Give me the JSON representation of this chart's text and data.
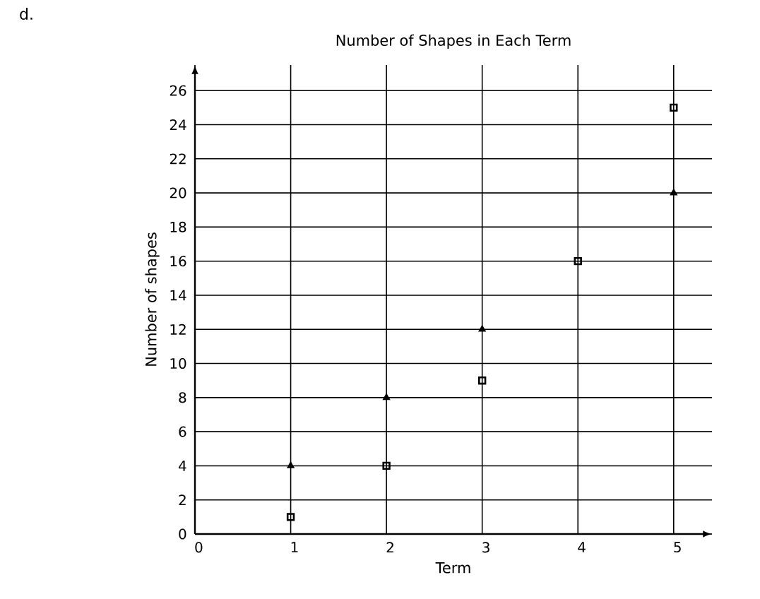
{
  "chart_data": {
    "type": "scatter",
    "title": "Number of Shapes in Each Term",
    "xlabel": "Term",
    "ylabel": "Number of shapes",
    "annotations": [
      "d."
    ],
    "x": [
      1,
      2,
      3,
      4,
      5
    ],
    "series": [
      {
        "color": "#000000",
        "marker": "triangle",
        "values": [
          4,
          8,
          12,
          null,
          20
        ]
      },
      {
        "color": "#000000",
        "marker": "square",
        "values": [
          1,
          4,
          9,
          16,
          25
        ]
      }
    ],
    "xlim": [
      0,
      5.4
    ],
    "ylim": [
      0,
      27.5
    ],
    "xticks": [
      0,
      1,
      2,
      3,
      4,
      5
    ],
    "yticks": [
      0,
      2,
      4,
      6,
      8,
      10,
      12,
      14,
      16,
      18,
      20,
      22,
      24,
      26
    ],
    "grid": true
  }
}
